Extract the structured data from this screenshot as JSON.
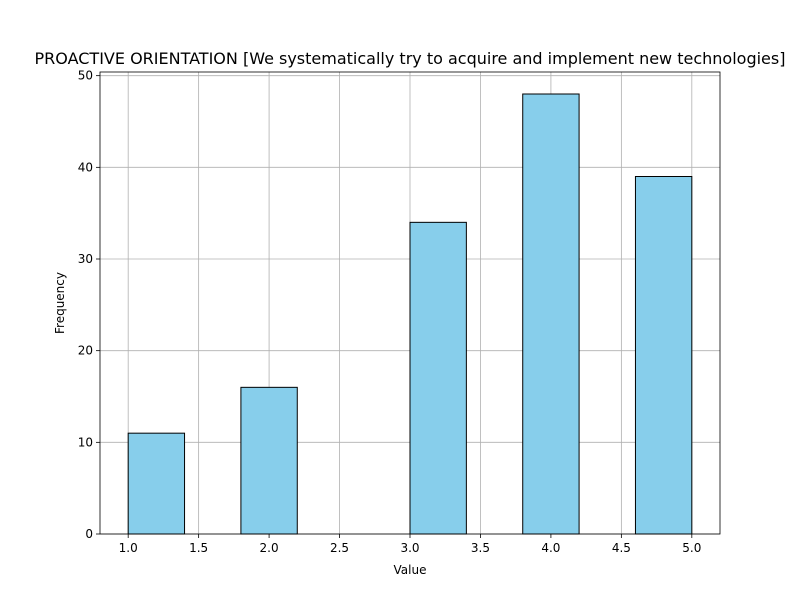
{
  "chart_data": {
    "type": "bar",
    "title": "PROACTIVE ORIENTATION [We systematically try to acquire and implement new technologies]",
    "xlabel": "Value",
    "ylabel": "Frequency",
    "xlim": [
      0.8,
      5.2
    ],
    "ylim": [
      0,
      50.4
    ],
    "xticks": [
      "1.0",
      "1.5",
      "2.0",
      "2.5",
      "3.0",
      "3.5",
      "4.0",
      "4.5",
      "5.0"
    ],
    "yticks": [
      "0",
      "10",
      "20",
      "30",
      "40",
      "50"
    ],
    "grid": true,
    "bar_color": "#87ceeb",
    "edge_color": "#000000",
    "bins": [
      {
        "start": 1.0,
        "end": 1.4,
        "value": 11
      },
      {
        "start": 1.4,
        "end": 1.8,
        "value": 0
      },
      {
        "start": 1.8,
        "end": 2.2,
        "value": 16
      },
      {
        "start": 2.2,
        "end": 2.6,
        "value": 0
      },
      {
        "start": 2.6,
        "end": 3.0,
        "value": 0
      },
      {
        "start": 3.0,
        "end": 3.4,
        "value": 34
      },
      {
        "start": 3.4,
        "end": 3.8,
        "value": 0
      },
      {
        "start": 3.8,
        "end": 4.2,
        "value": 48
      },
      {
        "start": 4.2,
        "end": 4.6,
        "value": 0
      },
      {
        "start": 4.6,
        "end": 5.0,
        "value": 39
      }
    ]
  }
}
